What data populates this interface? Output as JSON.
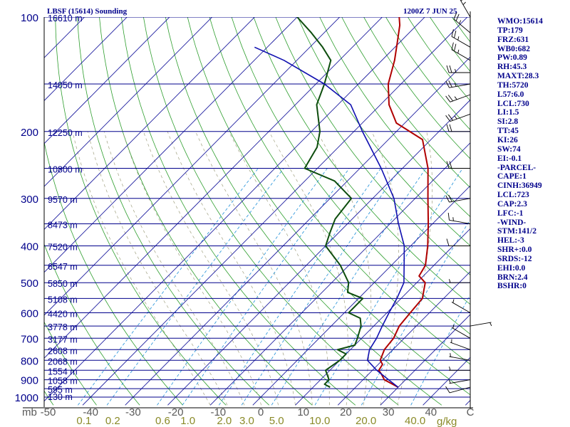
{
  "header": {
    "station": "LBSF (15614) Sounding",
    "time": "1200Z  7 JUN 25"
  },
  "indices": [
    "WMO:15614",
    "TP:179",
    "FRZ:631",
    "WB0:682",
    "PW:0.89",
    "RH:45.3",
    "MAXT:28.3",
    "TH:5720",
    "L57:6.0",
    "LCL:730",
    "LI:1.5",
    "SI:2.8",
    "TT:45",
    "KI:26",
    "SW:74",
    "EI:-0.1",
    "-PARCEL-",
    "CAPE:1",
    "CINH:36949",
    "LCL:723",
    "CAP:2.3",
    "LFC:-1",
    "-WIND-",
    "STM:141/2",
    "HEL:-3",
    "SHR+:0.0",
    "SRDS:-12",
    "EHI:0.0",
    "BRN:2.4",
    "BSHR:0"
  ],
  "chart_data": {
    "type": "line",
    "title": "LBSF (15614) Sounding",
    "xlabel": "",
    "ylabel": "",
    "x_unit": "C",
    "y_unit": "mb",
    "xlim": [
      -50,
      50
    ],
    "ylim": [
      1000,
      100
    ],
    "y_scale": "log",
    "grid": true,
    "x_ticks": [
      -50,
      -40,
      -30,
      -20,
      -10,
      0,
      10,
      20,
      30,
      40,
      50
    ],
    "x_tick_labels": [
      "-50",
      "-40",
      "-30",
      "-20",
      "-10",
      "0",
      "10",
      "20",
      "30",
      "40",
      "C"
    ],
    "pressure_ticks": [
      1000,
      900,
      800,
      700,
      600,
      500,
      400,
      300,
      200,
      100
    ],
    "pressure_label_position": "left",
    "height_labels": [
      {
        "p": 100,
        "label": "16610 m"
      },
      {
        "p": 150,
        "label": "14050 m"
      },
      {
        "p": 200,
        "label": "12250 m"
      },
      {
        "p": 250,
        "label": "10800 m"
      },
      {
        "p": 300,
        "label": "9570 m"
      },
      {
        "p": 350,
        "label": "8473 m"
      },
      {
        "p": 400,
        "label": "7520 m"
      },
      {
        "p": 450,
        "label": "6547 m"
      },
      {
        "p": 500,
        "label": "5850 m"
      },
      {
        "p": 550,
        "label": "5108 m"
      },
      {
        "p": 600,
        "label": "4420 m"
      },
      {
        "p": 650,
        "label": "3778 m"
      },
      {
        "p": 700,
        "label": "3177 m"
      },
      {
        "p": 750,
        "label": "2608 m"
      },
      {
        "p": 800,
        "label": "2068 m"
      },
      {
        "p": 850,
        "label": "1554 m"
      },
      {
        "p": 900,
        "label": "1058 m"
      },
      {
        "p": 950,
        "label": "595 m"
      },
      {
        "p": 1000,
        "label": "130 m"
      }
    ],
    "mixing_ratio_labels": [
      "0.1",
      "0.2",
      "0.6",
      "1.0",
      "2.0",
      "3.0",
      "5.0",
      "10.0",
      "20.0",
      "40.0"
    ],
    "mixing_ratio_unit": "g/kg",
    "colors": {
      "isobar": "#00008b",
      "isotherm": "#1f1fa0",
      "dry_adiabat": "#2e9e2e",
      "moist_adiabat": "#a0a080",
      "mixing_ratio": "#1e8fd8",
      "temperature": "#b00000",
      "dewpoint": "#0d4d0d",
      "parcel": "#1010b0",
      "wind": "#000000",
      "labels": "#00008b",
      "mixing_label": "#8a8a28",
      "axis_label": "#5a5a5a"
    },
    "series": [
      {
        "name": "Temperature",
        "points": [
          [
            30,
            942
          ],
          [
            28,
            925
          ],
          [
            25,
            900
          ],
          [
            23,
            870
          ],
          [
            21.5,
            850
          ],
          [
            21,
            820
          ],
          [
            19.5,
            800
          ],
          [
            18,
            750
          ],
          [
            17.5,
            700
          ],
          [
            16,
            650
          ],
          [
            15.5,
            600
          ],
          [
            15,
            550
          ],
          [
            12,
            500
          ],
          [
            9,
            480
          ],
          [
            8,
            450
          ],
          [
            4,
            400
          ],
          [
            -1,
            350
          ],
          [
            -7,
            300
          ],
          [
            -14,
            250
          ],
          [
            -22,
            210
          ],
          [
            -32,
            190
          ],
          [
            -38,
            170
          ],
          [
            -43,
            150
          ],
          [
            -47,
            130
          ],
          [
            -51,
            115
          ],
          [
            -54,
            105
          ],
          [
            -56,
            100
          ]
        ]
      },
      {
        "name": "Dewpoint",
        "points": [
          [
            14,
            942
          ],
          [
            12,
            925
          ],
          [
            12,
            900
          ],
          [
            9,
            850
          ],
          [
            10,
            800
          ],
          [
            10,
            770
          ],
          [
            7,
            750
          ],
          [
            10,
            730
          ],
          [
            9,
            700
          ],
          [
            7,
            650
          ],
          [
            5,
            620
          ],
          [
            1,
            600
          ],
          [
            1,
            550
          ],
          [
            -4,
            530
          ],
          [
            -6,
            500
          ],
          [
            -12,
            450
          ],
          [
            -20,
            400
          ],
          [
            -22,
            370
          ],
          [
            -24,
            340
          ],
          [
            -25,
            300
          ],
          [
            -33,
            270
          ],
          [
            -43,
            250
          ],
          [
            -45,
            220
          ],
          [
            -48,
            200
          ],
          [
            -55,
            170
          ],
          [
            -58,
            150
          ],
          [
            -62,
            130
          ],
          [
            -67,
            120
          ],
          [
            -73,
            110
          ],
          [
            -80,
            100
          ]
        ]
      },
      {
        "name": "Parcel",
        "points": [
          [
            30,
            942
          ],
          [
            26,
            900
          ],
          [
            21,
            850
          ],
          [
            16.5,
            800
          ],
          [
            14.5,
            750
          ],
          [
            13.5,
            700
          ],
          [
            12,
            650
          ],
          [
            10.5,
            600
          ],
          [
            9,
            550
          ],
          [
            7,
            500
          ],
          [
            3,
            450
          ],
          [
            -1.5,
            400
          ],
          [
            -8,
            350
          ],
          [
            -15,
            300
          ],
          [
            -25,
            250
          ],
          [
            -38,
            200
          ],
          [
            -47,
            170
          ],
          [
            -58,
            150
          ],
          [
            -73,
            130
          ],
          [
            -83,
            120
          ]
        ]
      }
    ],
    "wind_barbs": [
      {
        "p": 942,
        "dir": 255,
        "spd": 10
      },
      {
        "p": 900,
        "dir": 260,
        "spd": 5
      },
      {
        "p": 850,
        "dir": 270,
        "spd": 5
      },
      {
        "p": 800,
        "dir": 280,
        "spd": 5
      },
      {
        "p": 750,
        "dir": 290,
        "spd": 5
      },
      {
        "p": 700,
        "dir": 300,
        "spd": 5
      },
      {
        "p": 650,
        "dir": 80,
        "spd": 5
      },
      {
        "p": 600,
        "dir": 300,
        "spd": 5
      },
      {
        "p": 500,
        "dir": 270,
        "spd": 5
      },
      {
        "p": 400,
        "dir": 270,
        "spd": 10
      },
      {
        "p": 350,
        "dir": 280,
        "spd": 15
      },
      {
        "p": 300,
        "dir": 260,
        "spd": 20
      },
      {
        "p": 250,
        "dir": 270,
        "spd": 20
      },
      {
        "p": 200,
        "dir": 270,
        "spd": 20
      },
      {
        "p": 180,
        "dir": 250,
        "spd": 25
      },
      {
        "p": 160,
        "dir": 250,
        "spd": 25
      },
      {
        "p": 150,
        "dir": 260,
        "spd": 25
      },
      {
        "p": 140,
        "dir": 270,
        "spd": 25
      },
      {
        "p": 130,
        "dir": 300,
        "spd": 25
      },
      {
        "p": 120,
        "dir": 300,
        "spd": 25
      },
      {
        "p": 110,
        "dir": 310,
        "spd": 25
      },
      {
        "p": 100,
        "dir": 330,
        "spd": 25
      }
    ]
  }
}
